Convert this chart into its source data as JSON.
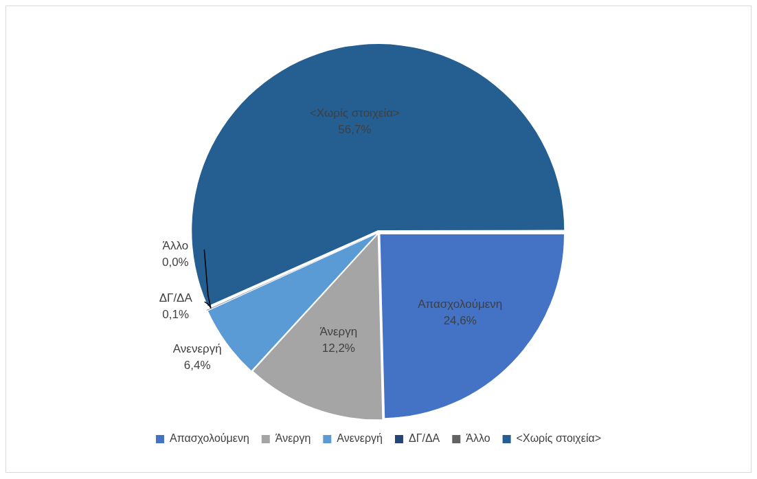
{
  "chart_data": {
    "type": "pie",
    "categories": [
      "Απασχολούμενη",
      "Άνεργη",
      "Ανενεργή",
      "ΔΓ/ΔΑ",
      "Άλλο",
      "<Χωρίς στοιχεία>"
    ],
    "values": [
      24.6,
      12.2,
      6.4,
      0.1,
      0.0,
      56.7
    ],
    "colors": [
      "#4472c4",
      "#a5a5a5",
      "#5b9bd5",
      "#264478",
      "#636363",
      "#255e91"
    ],
    "value_labels": [
      "24,6%",
      "12,2%",
      "6,4%",
      "0,1%",
      "0,0%",
      "56,7%"
    ],
    "legend": "bottom"
  }
}
